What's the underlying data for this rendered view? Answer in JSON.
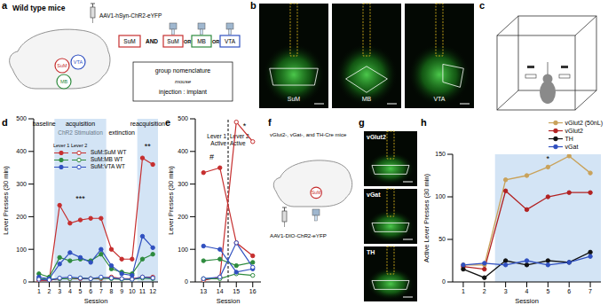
{
  "panel_letters": [
    "a",
    "b",
    "c",
    "d",
    "e",
    "f",
    "g",
    "h"
  ],
  "panel_a": {
    "title": "Wild type mice",
    "virus": "AAV1-hSyn-ChR2-eYFP",
    "brain_regions": [
      {
        "label": "SuM",
        "color": "#c62f2f"
      },
      {
        "label": "VTA",
        "color": "#3050c0"
      },
      {
        "label": "MB",
        "color": "#2e8b3e"
      }
    ],
    "injection": {
      "label": "SuM",
      "color": "#c62f2f"
    },
    "joiner": "AND",
    "alternative": "OR",
    "implants": [
      {
        "label": "SuM",
        "color": "#c62f2f"
      },
      {
        "label": "MB",
        "color": "#2e8b3e"
      },
      {
        "label": "VTA",
        "color": "#3050c0"
      }
    ],
    "nomenclature": [
      "group nomenclature",
      "mouse",
      "injection : implant"
    ]
  },
  "panel_b": {
    "labels": [
      "SuM",
      "MB",
      "VTA"
    ]
  },
  "panel_f": {
    "title": "vGlut2-, vGat-, and TH-Cre mice",
    "virus": "AAV1-DIO-ChR2-eYFP",
    "target": {
      "label": "SuM",
      "color": "#c62f2f"
    }
  },
  "panel_g": {
    "labels": [
      "vGlut2",
      "vGat",
      "TH"
    ]
  },
  "chart_data": [
    {
      "type": "line",
      "x": [
        1,
        2,
        3,
        4,
        5,
        6,
        7,
        8,
        9,
        10,
        11,
        12
      ],
      "xlim": [
        0.5,
        12.5
      ],
      "xticks": [
        1,
        2,
        3,
        4,
        5,
        6,
        7,
        8,
        9,
        10,
        11,
        12
      ],
      "ylim": [
        0,
        500
      ],
      "yticks": [
        0,
        100,
        200,
        300,
        400,
        500
      ],
      "x_label": "Session",
      "y_label": "Lever Presses (30 min)",
      "legend": "top left",
      "levers": [
        {
          "name": "Lever 1",
          "marker": "filled"
        },
        {
          "name": "Lever 2",
          "marker": "open"
        }
      ],
      "series": [
        {
          "name": "SuM:SuM WT",
          "color": "#c62f2f",
          "values": {
            "Lever 1": [
              5,
              5,
              235,
              180,
              190,
              195,
              195,
              100,
              70,
              70,
              380,
              360
            ],
            "Lever 2": [
              5,
              5,
              10,
              10,
              10,
              10,
              10,
              15,
              10,
              10,
              15,
              15
            ]
          }
        },
        {
          "name": "SuM:MB WT",
          "color": "#2e8b3e",
          "values": {
            "Lever 1": [
              25,
              15,
              75,
              65,
              70,
              65,
              85,
              40,
              30,
              25,
              70,
              85
            ],
            "Lever 2": [
              10,
              8,
              10,
              10,
              12,
              10,
              12,
              10,
              8,
              8,
              12,
              10
            ]
          }
        },
        {
          "name": "SuM:VTA WT",
          "color": "#3050c0",
          "values": {
            "Lever 1": [
              15,
              10,
              55,
              90,
              75,
              60,
              100,
              50,
              25,
              20,
              140,
              105
            ],
            "Lever 2": [
              8,
              6,
              12,
              15,
              12,
              10,
              15,
              12,
              10,
              8,
              15,
              12
            ]
          }
        }
      ],
      "phases": [
        {
          "label": "baseline",
          "range": [
            0.5,
            2.5
          ],
          "stim": false
        },
        {
          "label": "acquisition",
          "sublabel": "ChR2 Stimulation",
          "range": [
            2.5,
            7.5
          ],
          "stim": true
        },
        {
          "label": "extinction",
          "range": [
            7.5,
            10.5
          ],
          "stim": false
        },
        {
          "label": "reacquisition",
          "range": [
            10.5,
            12.5
          ],
          "stim": true
        }
      ],
      "annotations": [
        {
          "text": "***",
          "x": 5,
          "y": 255
        },
        {
          "text": "**",
          "x": 11.5,
          "y": 415
        }
      ]
    },
    {
      "type": "line",
      "x": [
        13,
        14,
        15,
        16
      ],
      "xlim": [
        12.5,
        16.5
      ],
      "xticks": [
        13,
        14,
        15,
        16
      ],
      "ylim": [
        0,
        500
      ],
      "yticks": [
        0,
        100,
        200,
        300,
        400,
        500
      ],
      "x_label": "Session",
      "y_label": "Lever Presses (30 min)",
      "levers": [
        {
          "name": "Lever 1",
          "marker": "filled"
        },
        {
          "name": "Lever 2",
          "marker": "open"
        }
      ],
      "series": [
        {
          "color": "#c62f2f",
          "values": {
            "Lever 1": [
              335,
              350,
              120,
              80
            ],
            "Lever 2": [
              5,
              15,
              490,
              430
            ]
          }
        },
        {
          "color": "#2e8b3e",
          "values": {
            "Lever 1": [
              65,
              70,
              50,
              60
            ],
            "Lever 2": [
              10,
              10,
              25,
              20
            ]
          }
        },
        {
          "color": "#3050c0",
          "values": {
            "Lever 1": [
              110,
              100,
              30,
              40
            ],
            "Lever 2": [
              10,
              15,
              120,
              45
            ]
          }
        }
      ],
      "switch": {
        "x": 14.5,
        "before": [
          "Lever 1",
          "Active"
        ],
        "after": [
          "Lever 2",
          "Active"
        ]
      },
      "annotations": [
        {
          "text": "#",
          "x": 13.5,
          "y": 385
        },
        {
          "text": "*",
          "x": 15.5,
          "y": 480
        }
      ]
    },
    {
      "type": "line",
      "x": [
        1,
        2,
        3,
        4,
        5,
        6,
        7
      ],
      "xlim": [
        0.5,
        7.5
      ],
      "xticks": [
        1,
        2,
        3,
        4,
        5,
        6,
        7
      ],
      "ylim": [
        0,
        150
      ],
      "yticks": [
        0,
        50,
        100,
        150
      ],
      "x_label": "Session",
      "y_label": "Active Lever Presses (30 min)",
      "legend": "top right",
      "marker": "filled",
      "series": [
        {
          "name": "vGlut2 (50nL)",
          "color": "#c9a25a",
          "values": [
            20,
            20,
            120,
            125,
            135,
            148,
            128
          ]
        },
        {
          "name": "vGlut2",
          "color": "#b22222",
          "values": [
            18,
            15,
            107,
            85,
            100,
            105,
            105
          ]
        },
        {
          "name": "TH",
          "color": "#111111",
          "values": [
            15,
            5,
            25,
            20,
            25,
            23,
            35
          ]
        },
        {
          "name": "vGat",
          "color": "#3050c0",
          "values": [
            20,
            22,
            20,
            25,
            20,
            23,
            30
          ]
        }
      ],
      "phases": [
        {
          "range": [
            2.5,
            7.5
          ],
          "stim": true
        }
      ],
      "annotations": [
        {
          "text": "*",
          "x": 5,
          "y": 145
        }
      ]
    }
  ]
}
